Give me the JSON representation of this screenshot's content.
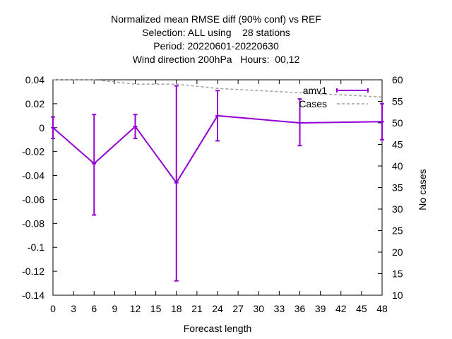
{
  "chart_data": {
    "type": "line",
    "title_lines": [
      "Normalized mean RMSE diff (90% conf) vs REF",
      "Selection: ALL using    28 stations",
      "Period: 20220601-20220630",
      "Wind direction 200hPa   Hours:  00,12"
    ],
    "xlabel": "Forecast length",
    "ylabel": "",
    "y2label": "No cases",
    "xlim": [
      0,
      48
    ],
    "ylim": [
      -0.14,
      0.04
    ],
    "y2lim": [
      10,
      60
    ],
    "x_ticks": [
      0,
      3,
      6,
      9,
      12,
      15,
      18,
      21,
      24,
      27,
      30,
      33,
      36,
      39,
      42,
      45,
      48
    ],
    "y_ticks": [
      0.04,
      0.02,
      0,
      -0.02,
      -0.04,
      -0.06,
      -0.08,
      -0.1,
      -0.12,
      -0.14
    ],
    "y_tick_labels": [
      "0.04",
      "0.02",
      "0",
      "-0.02",
      "-0.04",
      "-0.06",
      "-0.08",
      "-0.1",
      "-0.12",
      "-0.14"
    ],
    "y2_ticks": [
      60,
      55,
      50,
      45,
      40,
      35,
      30,
      25,
      20,
      15,
      10
    ],
    "grid": false,
    "legend_position": "top-right",
    "series": [
      {
        "name": "amv1",
        "color": "#9400d3",
        "style": "errorbars-lines",
        "x": [
          0,
          6,
          12,
          18,
          24,
          36,
          48
        ],
        "values": [
          0.0,
          -0.03,
          0.001,
          -0.046,
          0.01,
          0.004,
          0.005
        ],
        "err_low": [
          -0.009,
          -0.073,
          -0.009,
          -0.128,
          -0.011,
          -0.015,
          -0.01
        ],
        "err_high": [
          0.009,
          0.011,
          0.011,
          0.035,
          0.031,
          0.024,
          0.02
        ]
      },
      {
        "name": "Cases",
        "color": "#a0a0a0",
        "style": "dashed",
        "axis": "y2",
        "x": [
          0,
          6,
          12,
          18,
          24,
          36,
          48
        ],
        "values": [
          60,
          60,
          59,
          59,
          58,
          57,
          56
        ]
      }
    ]
  }
}
